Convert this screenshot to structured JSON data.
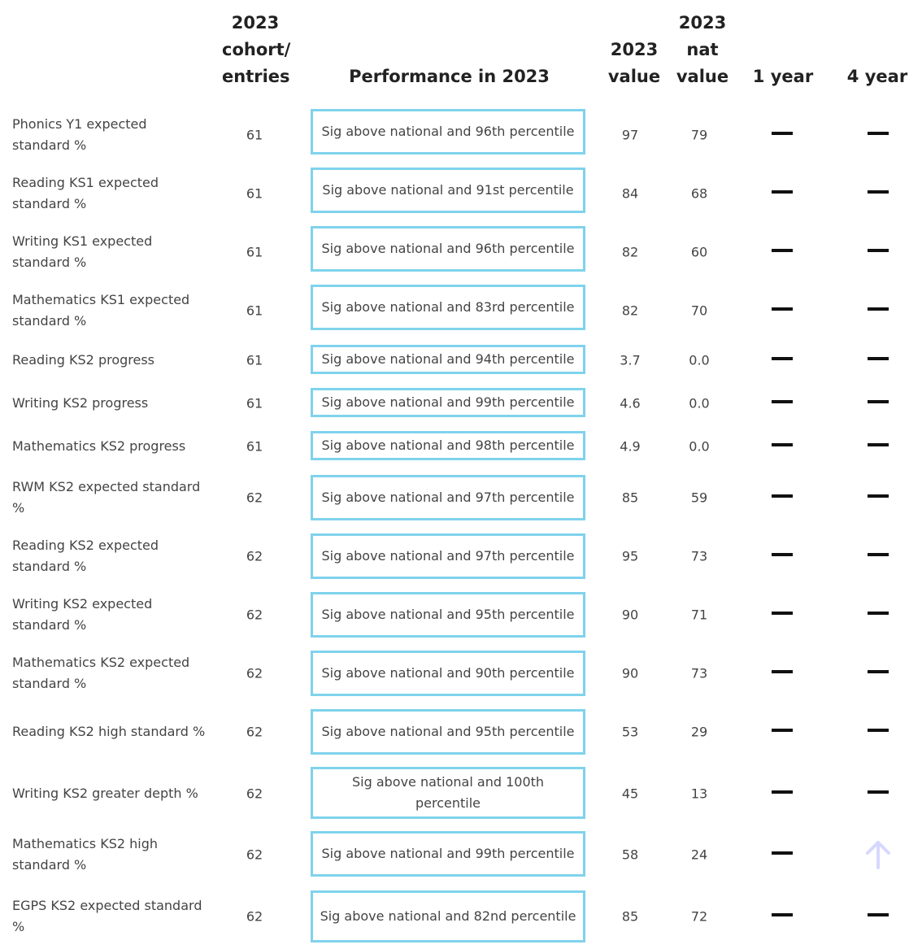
{
  "headers": {
    "cohort": [
      "2023",
      "cohort/",
      "entries"
    ],
    "performance": [
      "Performance in 2023"
    ],
    "value": [
      "2023",
      "value"
    ],
    "nat_value": [
      "2023",
      "nat",
      "value"
    ],
    "one_year": [
      "1 year"
    ],
    "four_year": [
      "4 year"
    ]
  },
  "colors": {
    "performance_border": "#7fd3ec",
    "trend_up": "#d6d8ff",
    "dash": "#111111"
  },
  "rows": [
    {
      "label": "Phonics Y1 expected standard %",
      "cohort": "61",
      "performance": "Sig above national and 96th percentile",
      "value": "97",
      "nat_value": "79",
      "one_year": "no-change-dash",
      "four_year": "no-change-dash"
    },
    {
      "label": "Reading KS1 expected standard %",
      "cohort": "61",
      "performance": "Sig above national and 91st percentile",
      "value": "84",
      "nat_value": "68",
      "one_year": "no-change-dash",
      "four_year": "no-change-dash"
    },
    {
      "label": "Writing KS1 expected standard %",
      "cohort": "61",
      "performance": "Sig above national and 96th percentile",
      "value": "82",
      "nat_value": "60",
      "one_year": "no-change-dash",
      "four_year": "no-change-dash"
    },
    {
      "label": "Mathematics KS1 expected standard %",
      "cohort": "61",
      "performance": "Sig above national and 83rd percentile",
      "value": "82",
      "nat_value": "70",
      "one_year": "no-change-dash",
      "four_year": "no-change-dash"
    },
    {
      "label": "Reading KS2 progress",
      "cohort": "61",
      "performance": "Sig above national and 94th percentile",
      "value": "3.7",
      "nat_value": "0.0",
      "one_year": "no-change-dash",
      "four_year": "no-change-dash"
    },
    {
      "label": "Writing KS2 progress",
      "cohort": "61",
      "performance": "Sig above national and 99th percentile",
      "value": "4.6",
      "nat_value": "0.0",
      "one_year": "no-change-dash",
      "four_year": "no-change-dash"
    },
    {
      "label": "Mathematics KS2 progress",
      "cohort": "61",
      "performance": "Sig above national and 98th percentile",
      "value": "4.9",
      "nat_value": "0.0",
      "one_year": "no-change-dash",
      "four_year": "no-change-dash"
    },
    {
      "label": "RWM KS2 expected standard %",
      "cohort": "62",
      "performance": "Sig above national and 97th percentile",
      "value": "85",
      "nat_value": "59",
      "one_year": "no-change-dash",
      "four_year": "no-change-dash"
    },
    {
      "label": "Reading KS2 expected standard %",
      "cohort": "62",
      "performance": "Sig above national and 97th percentile",
      "value": "95",
      "nat_value": "73",
      "one_year": "no-change-dash",
      "four_year": "no-change-dash"
    },
    {
      "label": "Writing KS2 expected standard %",
      "cohort": "62",
      "performance": "Sig above national and 95th percentile",
      "value": "90",
      "nat_value": "71",
      "one_year": "no-change-dash",
      "four_year": "no-change-dash"
    },
    {
      "label": "Mathematics KS2 expected standard %",
      "cohort": "62",
      "performance": "Sig above national and 90th percentile",
      "value": "90",
      "nat_value": "73",
      "one_year": "no-change-dash",
      "four_year": "no-change-dash"
    },
    {
      "label": "Reading KS2 high standard %",
      "cohort": "62",
      "performance": "Sig above national and 95th percentile",
      "value": "53",
      "nat_value": "29",
      "one_year": "no-change-dash",
      "four_year": "no-change-dash"
    },
    {
      "label": "Writing KS2 greater depth %",
      "cohort": "62",
      "performance": "Sig above national and 100th percentile",
      "value": "45",
      "nat_value": "13",
      "one_year": "no-change-dash",
      "four_year": "no-change-dash"
    },
    {
      "label": "Mathematics KS2 high standard %",
      "cohort": "62",
      "performance": "Sig above national and 99th percentile",
      "value": "58",
      "nat_value": "24",
      "one_year": "no-change-dash",
      "four_year": "up-arrow-icon"
    },
    {
      "label": "EGPS KS2 expected standard %",
      "cohort": "62",
      "performance": "Sig above national and 82nd percentile",
      "value": "85",
      "nat_value": "72",
      "one_year": "no-change-dash",
      "four_year": "no-change-dash"
    }
  ]
}
